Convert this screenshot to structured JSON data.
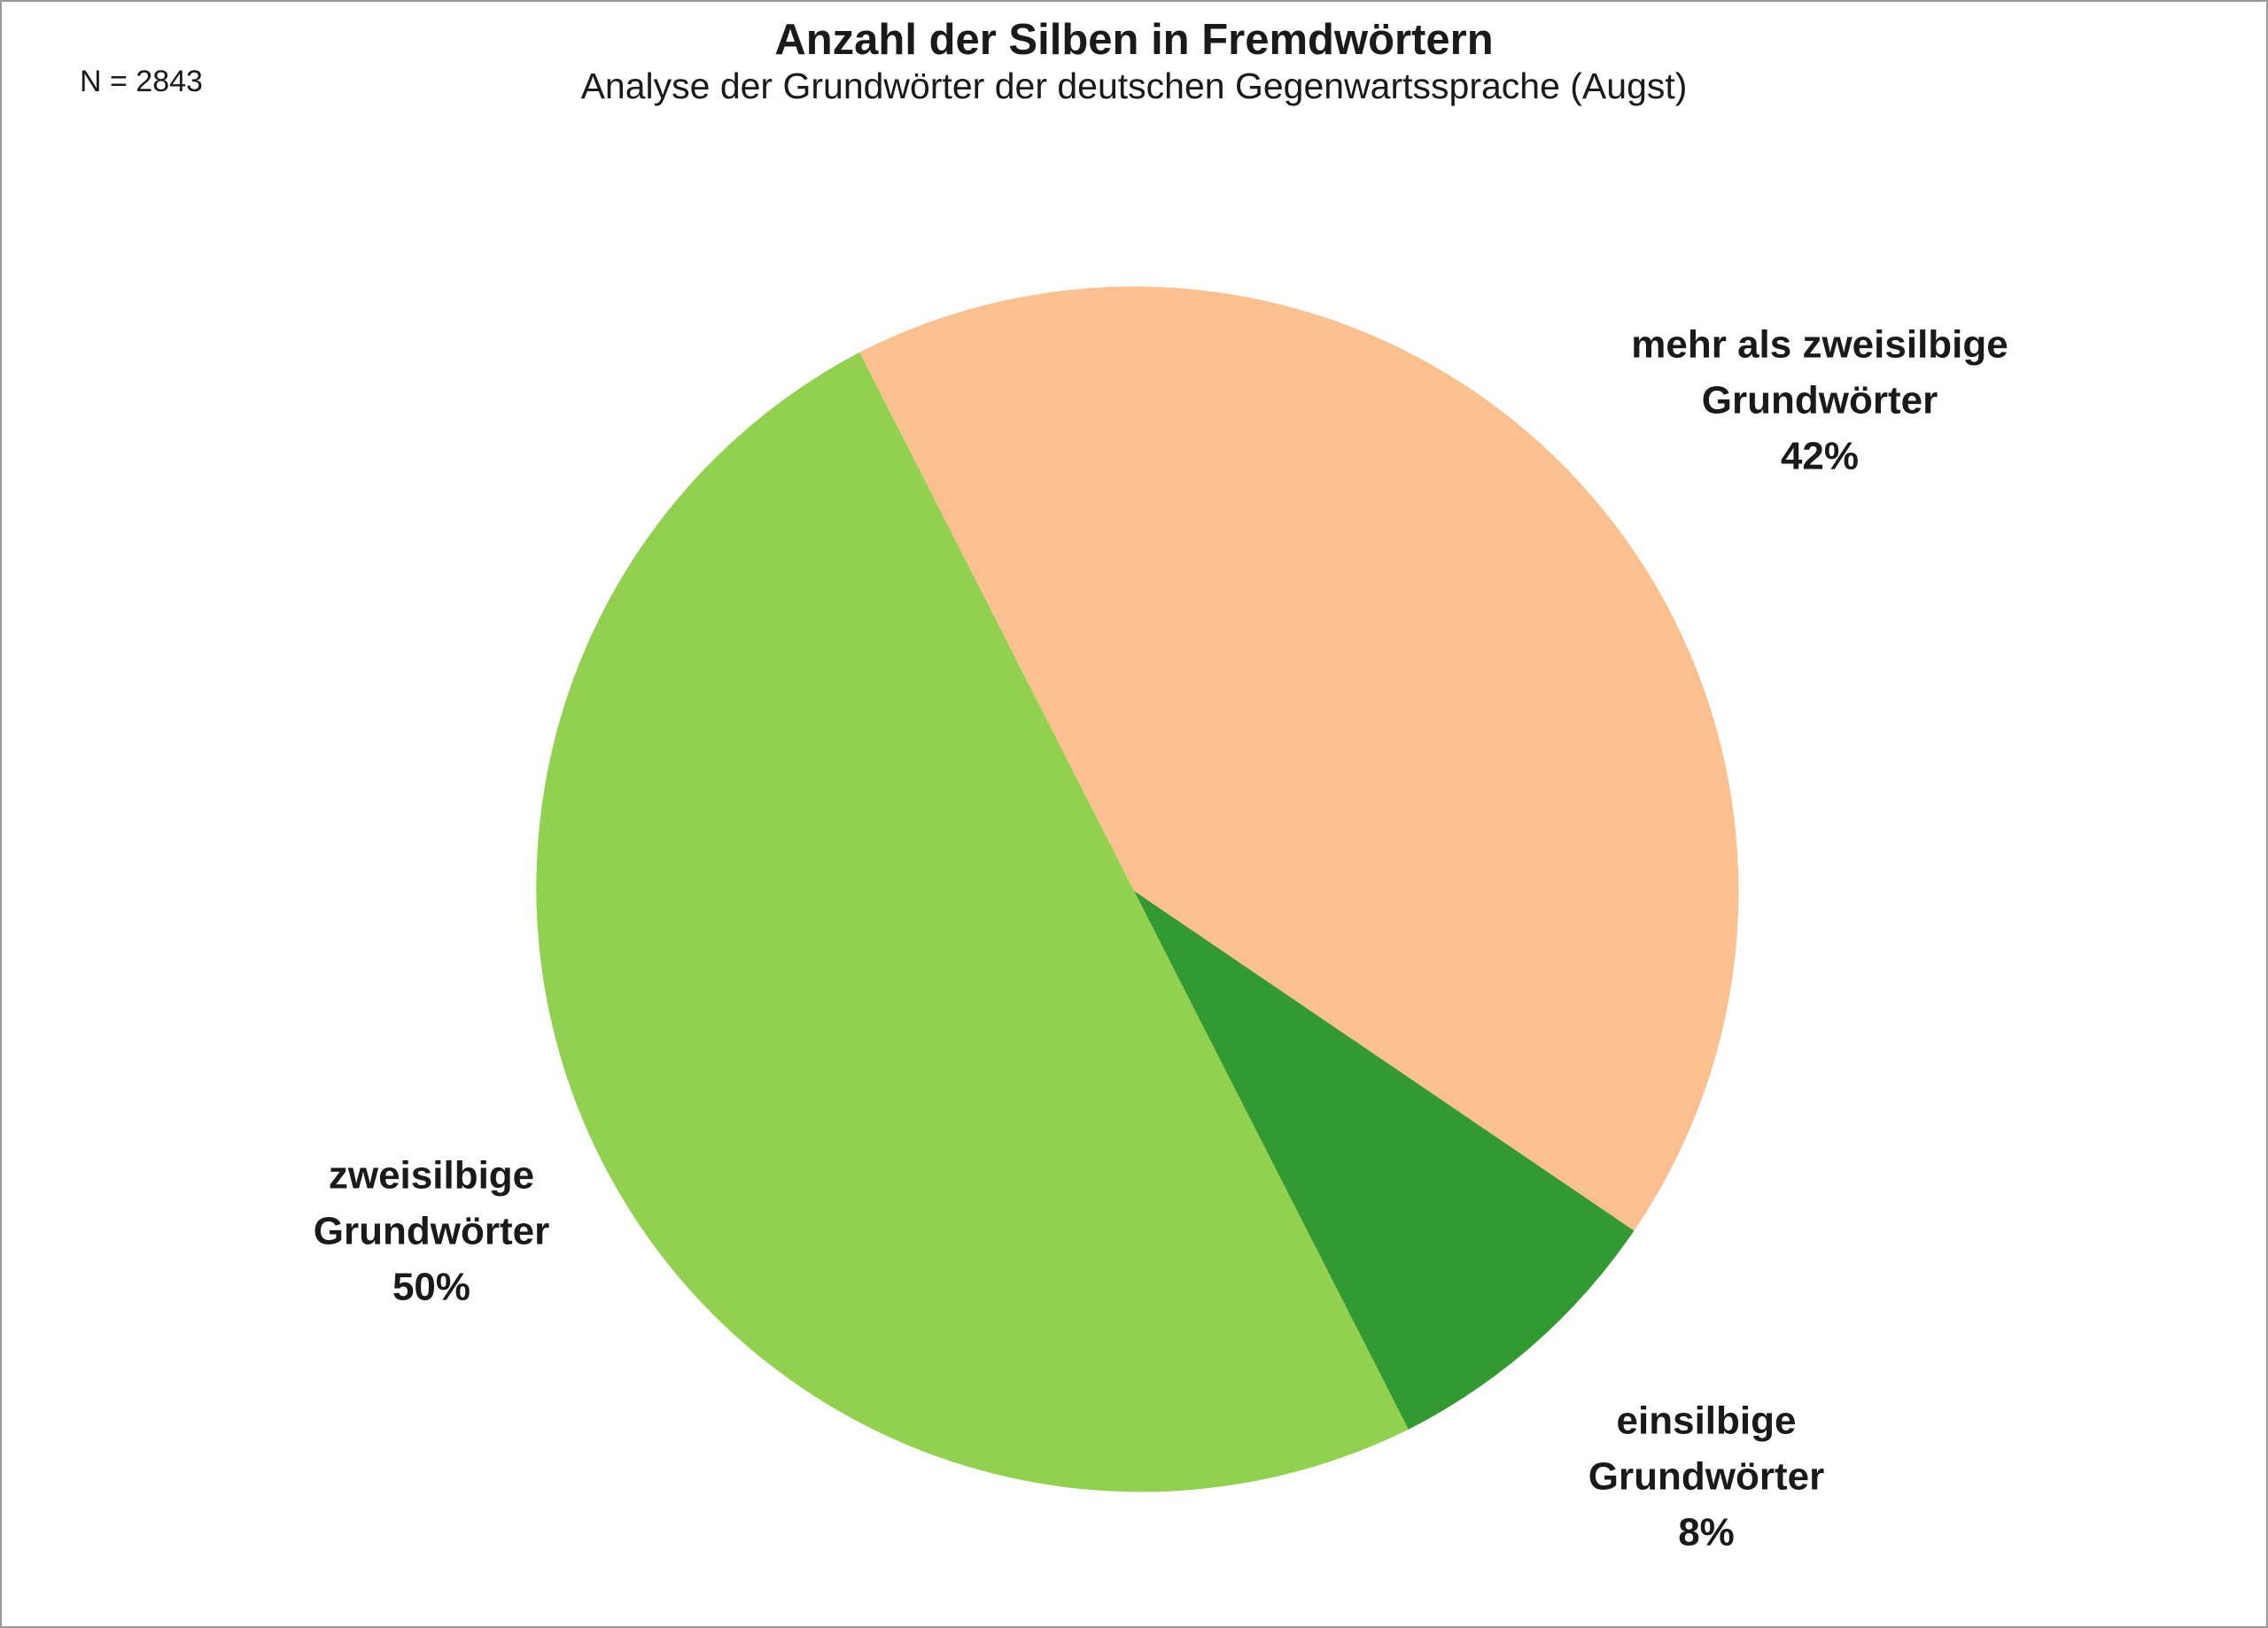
{
  "frame": {
    "border_color": "#999999",
    "background_color": "#FFFFFF"
  },
  "chart_data": {
    "type": "pie",
    "title": "Anzahl der Silben in Fremdwörtern",
    "subtitle": "Analyse der Grundwörter der deutschen Gegenwartssprache (Augst)",
    "sample_size_label": "N = 2843",
    "sample_size": 2843,
    "legend_position": "none",
    "start_angle_deg": -27,
    "direction": "clockwise",
    "categories": [
      "mehr als zweisilbige Grundwörter",
      "einsilbige Grundwörter",
      "zweisilbige Grundwörter"
    ],
    "values": [
      42,
      8,
      50
    ],
    "unit": "%",
    "slices": [
      {
        "label": "mehr als zweisilbige Grundwörter",
        "value_pct": 42,
        "color": "#FAC090",
        "display_text": "mehr als zweisilbige\nGrundwörter\n42%"
      },
      {
        "label": "einsilbige Grundwörter",
        "value_pct": 8,
        "color": "#339933",
        "display_text": "einsilbige\nGrundwörter\n8%"
      },
      {
        "label": "zweisilbige Grundwörter",
        "value_pct": 50,
        "color": "#92D050",
        "display_text": "zweisilbige\nGrundwörter\n50%"
      }
    ]
  }
}
